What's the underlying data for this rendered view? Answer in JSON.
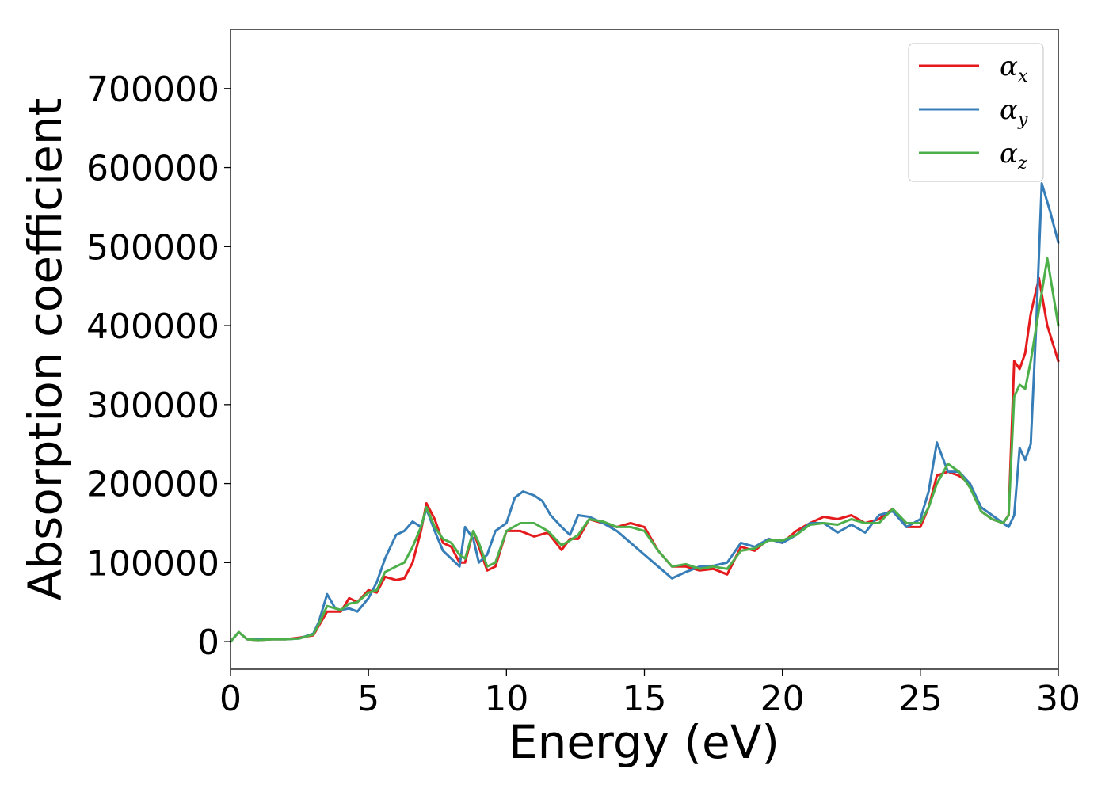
{
  "chart_data": {
    "type": "line",
    "xlabel": "Energy (eV)",
    "ylabel": "Absorption coefficient",
    "xlim": [
      0,
      30
    ],
    "ylim": [
      -35000,
      775000
    ],
    "xticks": [
      0,
      5,
      10,
      15,
      20,
      25,
      30
    ],
    "yticks": [
      0,
      100000,
      200000,
      300000,
      400000,
      500000,
      600000,
      700000
    ],
    "grid": false,
    "legend_position": "top-right",
    "series": [
      {
        "name": "α",
        "subscript": "x",
        "color": "#e41a1c",
        "x": [
          0,
          0.3,
          0.6,
          1,
          1.5,
          2,
          2.5,
          3,
          3.2,
          3.5,
          4,
          4.3,
          4.6,
          5,
          5.3,
          5.6,
          6,
          6.3,
          6.6,
          6.9,
          7.1,
          7.4,
          7.7,
          8,
          8.3,
          8.5,
          8.8,
          9,
          9.3,
          9.6,
          10,
          10.5,
          11,
          11.5,
          12,
          12.3,
          12.6,
          13,
          13.5,
          14,
          14.5,
          15,
          15.5,
          16,
          16.5,
          17,
          17.5,
          18,
          18.5,
          19,
          19.5,
          20,
          20.5,
          21,
          21.5,
          22,
          22.5,
          23,
          23.5,
          24,
          24.5,
          25,
          25.3,
          25.6,
          26,
          26.4,
          26.8,
          27.2,
          27.6,
          28,
          28.2,
          28.4,
          28.6,
          28.8,
          29,
          29.3,
          29.6,
          30
        ],
        "y": [
          0,
          12000,
          3000,
          2000,
          3000,
          3000,
          5000,
          8000,
          20000,
          38000,
          38000,
          55000,
          50000,
          65000,
          62000,
          82000,
          78000,
          80000,
          100000,
          140000,
          175000,
          155000,
          125000,
          120000,
          100000,
          100000,
          140000,
          120000,
          90000,
          95000,
          140000,
          140000,
          133000,
          138000,
          116000,
          130000,
          130000,
          155000,
          150000,
          145000,
          150000,
          145000,
          115000,
          95000,
          95000,
          90000,
          92000,
          85000,
          120000,
          115000,
          130000,
          125000,
          140000,
          150000,
          158000,
          155000,
          160000,
          150000,
          155000,
          168000,
          145000,
          145000,
          170000,
          210000,
          215000,
          210000,
          200000,
          165000,
          155000,
          150000,
          160000,
          355000,
          345000,
          365000,
          415000,
          460000,
          400000,
          355000
        ]
      },
      {
        "name": "α",
        "subscript": "y",
        "color": "#377eb8",
        "x": [
          0,
          0.3,
          0.6,
          1,
          1.5,
          2,
          2.5,
          3,
          3.2,
          3.5,
          3.8,
          4,
          4.3,
          4.6,
          5,
          5.3,
          5.6,
          6,
          6.3,
          6.6,
          6.9,
          7.1,
          7.4,
          7.7,
          8,
          8.3,
          8.5,
          8.8,
          9,
          9.3,
          9.6,
          10,
          10.3,
          10.6,
          11,
          11.3,
          11.6,
          12,
          12.3,
          12.6,
          13,
          13.5,
          14,
          14.5,
          15,
          15.5,
          16,
          16.5,
          17,
          17.5,
          18,
          18.5,
          19,
          19.5,
          20,
          20.5,
          21,
          21.5,
          22,
          22.5,
          23,
          23.5,
          24,
          24.5,
          25,
          25.3,
          25.6,
          26,
          26.4,
          26.8,
          27.2,
          27.6,
          28,
          28.2,
          28.4,
          28.6,
          28.8,
          29,
          29.2,
          29.4,
          29.7,
          30
        ],
        "y": [
          0,
          12000,
          3000,
          3000,
          3000,
          3000,
          4000,
          10000,
          25000,
          60000,
          42000,
          40000,
          42000,
          38000,
          55000,
          75000,
          105000,
          135000,
          140000,
          152000,
          145000,
          168000,
          140000,
          115000,
          105000,
          95000,
          145000,
          130000,
          100000,
          110000,
          140000,
          150000,
          182000,
          190000,
          185000,
          178000,
          160000,
          145000,
          135000,
          160000,
          158000,
          150000,
          140000,
          125000,
          110000,
          95000,
          80000,
          88000,
          95000,
          96000,
          100000,
          125000,
          120000,
          130000,
          125000,
          135000,
          150000,
          150000,
          138000,
          148000,
          138000,
          160000,
          165000,
          145000,
          155000,
          190000,
          252000,
          215000,
          215000,
          200000,
          170000,
          160000,
          150000,
          145000,
          160000,
          245000,
          230000,
          250000,
          400000,
          580000,
          545000,
          505000
        ]
      },
      {
        "name": "α",
        "subscript": "z",
        "color": "#4daf4a",
        "x": [
          0,
          0.3,
          0.6,
          1,
          1.5,
          2,
          2.5,
          3,
          3.2,
          3.5,
          4,
          4.3,
          4.6,
          5,
          5.3,
          5.6,
          6,
          6.3,
          6.6,
          6.9,
          7.1,
          7.4,
          7.7,
          8,
          8.3,
          8.5,
          8.8,
          9,
          9.3,
          9.6,
          10,
          10.5,
          11,
          11.5,
          12,
          12.3,
          12.6,
          13,
          13.5,
          14,
          14.5,
          15,
          15.5,
          16,
          16.5,
          17,
          17.5,
          18,
          18.5,
          19,
          19.5,
          20,
          20.5,
          21,
          21.5,
          22,
          22.5,
          23,
          23.5,
          24,
          24.5,
          25,
          25.3,
          25.6,
          26,
          26.4,
          26.8,
          27.2,
          27.6,
          28,
          28.2,
          28.4,
          28.6,
          28.8,
          29,
          29.3,
          29.6,
          30
        ],
        "y": [
          0,
          12000,
          3000,
          2000,
          3000,
          3000,
          4000,
          9000,
          22000,
          45000,
          40000,
          48000,
          50000,
          62000,
          65000,
          88000,
          95000,
          100000,
          120000,
          145000,
          170000,
          145000,
          130000,
          125000,
          110000,
          105000,
          140000,
          125000,
          95000,
          100000,
          140000,
          150000,
          150000,
          140000,
          122000,
          128000,
          135000,
          155000,
          152000,
          145000,
          145000,
          140000,
          115000,
          95000,
          98000,
          92000,
          95000,
          92000,
          115000,
          118000,
          128000,
          128000,
          135000,
          148000,
          150000,
          148000,
          155000,
          150000,
          150000,
          168000,
          150000,
          150000,
          170000,
          200000,
          225000,
          215000,
          195000,
          165000,
          155000,
          150000,
          160000,
          310000,
          325000,
          320000,
          355000,
          420000,
          485000,
          400000
        ]
      }
    ]
  }
}
